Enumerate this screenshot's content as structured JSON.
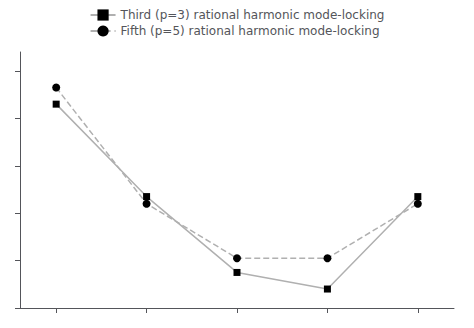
{
  "chart_data": {
    "type": "line",
    "x": [
      0,
      1,
      2,
      3,
      4
    ],
    "series": [
      {
        "name": "Third (p=3) rational harmonic mode-locking",
        "color": "#b0b0b0",
        "marker": "square",
        "line_style": "solid",
        "values": [
          0.86,
          0.47,
          0.15,
          0.08,
          0.47
        ]
      },
      {
        "name": "Fifth (p=5) rational harmonic mode-locking",
        "color": "#b0b0b0",
        "marker": "circle",
        "line_style": "dashed",
        "values": [
          0.93,
          0.44,
          0.21,
          0.21,
          0.44
        ]
      }
    ],
    "xlim": [
      -0.4,
      4.4
    ],
    "ylim": [
      0.0,
      1.08
    ],
    "xticks": [
      0,
      1,
      2,
      3,
      4
    ],
    "yticks": [
      0,
      0.2,
      0.4,
      0.6,
      0.8,
      1.0
    ],
    "tick_labels": false,
    "grid": false,
    "legend": "upper center"
  }
}
